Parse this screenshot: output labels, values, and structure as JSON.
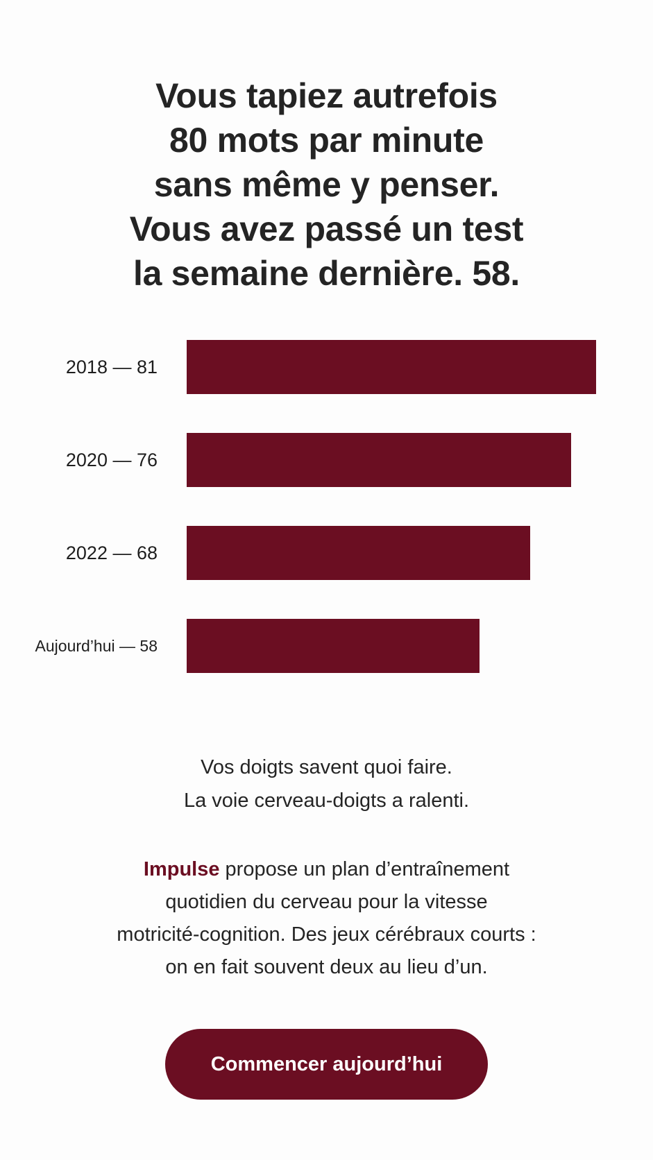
{
  "headline": {
    "lines": [
      "Vous tapiez autrefois",
      "80 mots par minute",
      "sans même y penser.",
      "Vous avez passé un test",
      "la semaine dernière. 58."
    ]
  },
  "chart_data": {
    "type": "bar",
    "orientation": "horizontal",
    "categories": [
      "2018 — 81",
      "2020 — 76",
      "2022 — 68",
      "Aujourd’hui — 58"
    ],
    "values": [
      81,
      76,
      68,
      58
    ],
    "color": "#6b0e22",
    "title": "",
    "xlabel": "",
    "ylabel": ""
  },
  "subtext": {
    "lines": [
      "Vos doigts savent quoi faire.",
      "La voie cerveau-doigts a ralenti."
    ]
  },
  "description": {
    "brand": "Impulse",
    "line1_rest": " propose un plan d’entraînement",
    "line2": "quotidien du cerveau pour la vitesse",
    "line3": "motricité-cognition. Des jeux cérébraux courts :",
    "line4": "on en fait souvent deux au lieu d’un."
  },
  "cta": {
    "label": "Commencer aujourd’hui"
  },
  "colors": {
    "accent": "#6b0e22",
    "text": "#242424",
    "background": "#fdfdfd"
  }
}
